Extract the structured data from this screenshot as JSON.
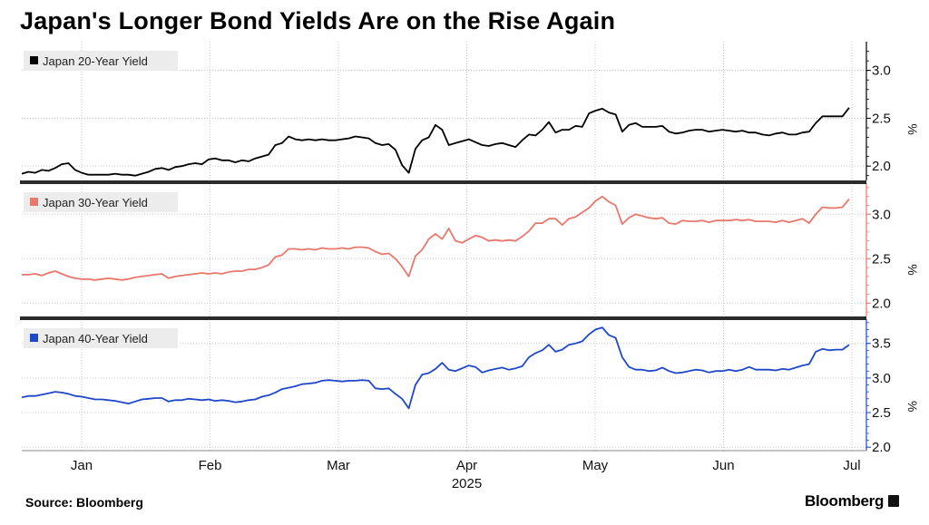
{
  "title": "Japan's Longer Bond Yields Are on the Rise Again",
  "source": "Source: Bloomberg",
  "brand": "Bloomberg",
  "chart_data": {
    "type": "line",
    "x_tick_labels": [
      "Jan",
      "Feb",
      "Mar",
      "Apr",
      "May",
      "Jun",
      "Jul"
    ],
    "x_year_label": "2025",
    "unit_label": "%",
    "grid": true,
    "legend_position": "top-left",
    "panels": [
      {
        "name": "Japan 20-Year Yield",
        "color": "#000000",
        "ylim": [
          1.85,
          3.3
        ],
        "y_ticks": [
          2.0,
          2.5,
          3.0
        ],
        "values": [
          1.92,
          1.94,
          1.93,
          1.96,
          1.95,
          1.98,
          2.02,
          2.03,
          1.96,
          1.93,
          1.91,
          1.91,
          1.91,
          1.91,
          1.92,
          1.91,
          1.91,
          1.9,
          1.92,
          1.94,
          1.97,
          1.98,
          1.96,
          1.99,
          2.0,
          2.02,
          2.03,
          2.02,
          2.07,
          2.08,
          2.06,
          2.06,
          2.04,
          2.06,
          2.05,
          2.08,
          2.1,
          2.12,
          2.22,
          2.24,
          2.31,
          2.28,
          2.27,
          2.28,
          2.27,
          2.28,
          2.27,
          2.27,
          2.28,
          2.29,
          2.31,
          2.3,
          2.29,
          2.24,
          2.22,
          2.23,
          2.17,
          2.01,
          1.93,
          2.18,
          2.27,
          2.3,
          2.43,
          2.38,
          2.22,
          2.24,
          2.26,
          2.28,
          2.25,
          2.22,
          2.21,
          2.23,
          2.24,
          2.22,
          2.2,
          2.27,
          2.33,
          2.32,
          2.38,
          2.46,
          2.35,
          2.38,
          2.38,
          2.42,
          2.41,
          2.55,
          2.58,
          2.6,
          2.56,
          2.54,
          2.36,
          2.43,
          2.45,
          2.41,
          2.41,
          2.41,
          2.42,
          2.36,
          2.34,
          2.35,
          2.37,
          2.38,
          2.38,
          2.36,
          2.37,
          2.38,
          2.37,
          2.36,
          2.37,
          2.35,
          2.35,
          2.33,
          2.32,
          2.34,
          2.35,
          2.33,
          2.33,
          2.35,
          2.36,
          2.45,
          2.52,
          2.52,
          2.52,
          2.52,
          2.61
        ]
      },
      {
        "name": "Japan 30-Year Yield",
        "color": "#e8776c",
        "ylim": [
          1.85,
          3.35
        ],
        "y_ticks": [
          2.0,
          2.5,
          3.0
        ],
        "values": [
          2.32,
          2.32,
          2.33,
          2.31,
          2.34,
          2.36,
          2.33,
          2.3,
          2.28,
          2.27,
          2.27,
          2.26,
          2.27,
          2.28,
          2.27,
          2.26,
          2.27,
          2.29,
          2.3,
          2.31,
          2.32,
          2.33,
          2.28,
          2.3,
          2.31,
          2.32,
          2.33,
          2.34,
          2.33,
          2.34,
          2.33,
          2.35,
          2.36,
          2.36,
          2.38,
          2.38,
          2.4,
          2.43,
          2.52,
          2.54,
          2.61,
          2.61,
          2.6,
          2.61,
          2.6,
          2.62,
          2.61,
          2.61,
          2.62,
          2.61,
          2.63,
          2.63,
          2.62,
          2.58,
          2.55,
          2.56,
          2.5,
          2.41,
          2.3,
          2.53,
          2.6,
          2.72,
          2.78,
          2.72,
          2.84,
          2.7,
          2.68,
          2.72,
          2.76,
          2.74,
          2.7,
          2.71,
          2.7,
          2.71,
          2.7,
          2.75,
          2.81,
          2.9,
          2.9,
          2.95,
          2.95,
          2.88,
          2.95,
          2.97,
          3.02,
          3.07,
          3.15,
          3.2,
          3.14,
          3.1,
          2.89,
          2.96,
          3.0,
          2.98,
          2.96,
          2.95,
          2.96,
          2.9,
          2.89,
          2.93,
          2.92,
          2.92,
          2.93,
          2.91,
          2.93,
          2.93,
          2.93,
          2.94,
          2.93,
          2.94,
          2.92,
          2.92,
          2.92,
          2.91,
          2.93,
          2.91,
          2.93,
          2.95,
          2.9,
          3.0,
          3.08,
          3.07,
          3.07,
          3.08,
          3.17
        ]
      },
      {
        "name": "Japan 40-Year Yield",
        "color": "#1f47c9",
        "ylim": [
          1.95,
          3.85
        ],
        "y_ticks": [
          2.0,
          2.5,
          3.0,
          3.5
        ],
        "values": [
          2.72,
          2.74,
          2.74,
          2.76,
          2.78,
          2.8,
          2.79,
          2.77,
          2.74,
          2.73,
          2.71,
          2.69,
          2.69,
          2.68,
          2.67,
          2.65,
          2.63,
          2.66,
          2.69,
          2.7,
          2.71,
          2.71,
          2.66,
          2.68,
          2.68,
          2.7,
          2.69,
          2.68,
          2.69,
          2.67,
          2.68,
          2.67,
          2.65,
          2.66,
          2.68,
          2.69,
          2.73,
          2.75,
          2.79,
          2.84,
          2.86,
          2.88,
          2.91,
          2.92,
          2.93,
          2.96,
          2.97,
          2.96,
          2.95,
          2.96,
          2.96,
          2.97,
          2.96,
          2.85,
          2.84,
          2.85,
          2.77,
          2.7,
          2.56,
          2.9,
          3.05,
          3.07,
          3.13,
          3.22,
          3.12,
          3.1,
          3.14,
          3.18,
          3.16,
          3.08,
          3.11,
          3.13,
          3.15,
          3.12,
          3.14,
          3.17,
          3.3,
          3.36,
          3.4,
          3.48,
          3.38,
          3.41,
          3.48,
          3.5,
          3.53,
          3.63,
          3.7,
          3.73,
          3.62,
          3.58,
          3.3,
          3.16,
          3.12,
          3.12,
          3.1,
          3.11,
          3.15,
          3.1,
          3.07,
          3.08,
          3.1,
          3.12,
          3.11,
          3.08,
          3.1,
          3.1,
          3.12,
          3.1,
          3.12,
          3.16,
          3.12,
          3.12,
          3.12,
          3.11,
          3.13,
          3.12,
          3.15,
          3.18,
          3.2,
          3.38,
          3.42,
          3.4,
          3.41,
          3.41,
          3.48
        ]
      }
    ]
  }
}
